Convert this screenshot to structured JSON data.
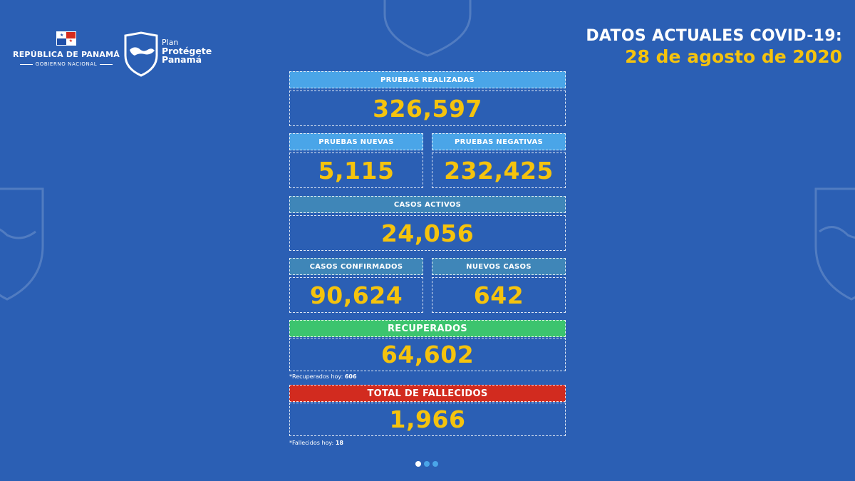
{
  "branding": {
    "republic_name": "REPÚBLICA DE PANAMÁ",
    "republic_subtitle": "GOBIERNO NACIONAL",
    "plan_line1": "Plan",
    "plan_line2": "Protégete",
    "plan_line3": "Panamá"
  },
  "header": {
    "title": "DATOS ACTUALES COVID-19:",
    "date": "28 de agosto de 2020"
  },
  "stats": {
    "pruebas_realizadas": {
      "label": "PRUEBAS REALIZADAS",
      "value": "326,597"
    },
    "pruebas_nuevas": {
      "label": "PRUEBAS NUEVAS",
      "value": "5,115"
    },
    "pruebas_negativas": {
      "label": "PRUEBAS NEGATIVAS",
      "value": "232,425"
    },
    "casos_activos": {
      "label": "CASOS ACTIVOS",
      "value": "24,056"
    },
    "casos_confirmados": {
      "label": "CASOS CONFIRMADOS",
      "value": "90,624"
    },
    "nuevos_casos": {
      "label": "NUEVOS CASOS",
      "value": "642"
    },
    "recuperados": {
      "label": "RECUPERADOS",
      "value": "64,602",
      "note_label": "*Recuperados hoy:",
      "note_value": "606"
    },
    "fallecidos": {
      "label": "TOTAL DE FALLECIDOS",
      "value": "1,966",
      "note_label": "*Fallecidos hoy:",
      "note_value": "18"
    }
  },
  "colors": {
    "background": "#2b5fb4",
    "pruebas_header": "#4aa5e8",
    "casos_header": "#3f86b8",
    "recuperados_header": "#3cc46e",
    "fallecidos_header": "#d22b1f",
    "value_text": "#f5c30d"
  },
  "pagination": {
    "total": 3,
    "active": 1
  }
}
